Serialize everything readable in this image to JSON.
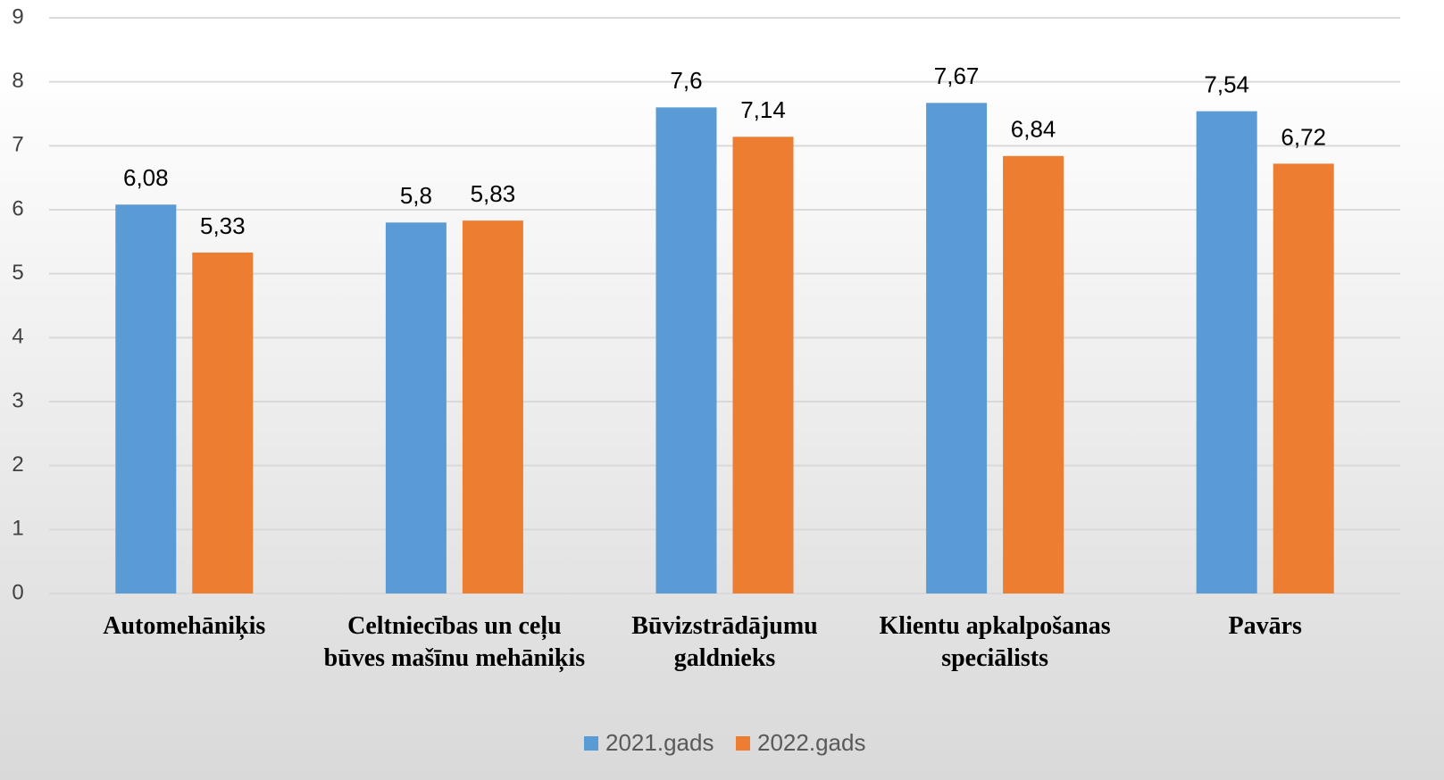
{
  "chart_data": {
    "type": "bar",
    "categories": [
      "Automehāniķis",
      "Celtniecības un ceļu būves mašīnu mehāniķis",
      "Būvizstrādājumu galdnieks",
      "Klientu apkalpošanas speciālists",
      "Pavārs"
    ],
    "series": [
      {
        "name": "2021.gads",
        "color": "#5b9bd5",
        "values": [
          6.08,
          5.8,
          7.6,
          7.67,
          7.54
        ],
        "value_labels": [
          "6,08",
          "5,8",
          "7,6",
          "7,67",
          "7,54"
        ]
      },
      {
        "name": "2022.gads",
        "color": "#ed7d31",
        "values": [
          5.33,
          5.83,
          7.14,
          6.84,
          6.72
        ],
        "value_labels": [
          "5,33",
          "5,83",
          "7,14",
          "6,84",
          "6,72"
        ]
      }
    ],
    "ylim": [
      0,
      9
    ],
    "yticks": [
      0,
      1,
      2,
      3,
      4,
      5,
      6,
      7,
      8,
      9
    ],
    "grid": true,
    "legend": "bottom"
  }
}
